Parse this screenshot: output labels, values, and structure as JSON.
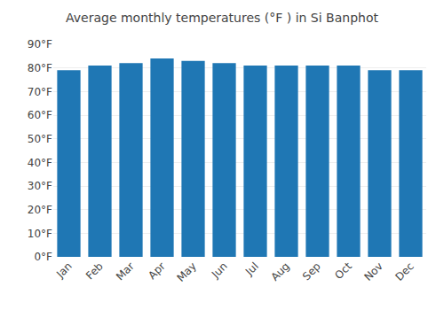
{
  "chart_data": {
    "type": "bar",
    "title": "Average monthly temperatures (°F ) in Si Banphot",
    "categories": [
      "Jan",
      "Feb",
      "Mar",
      "Apr",
      "May",
      "Jun",
      "Jul",
      "Aug",
      "Sep",
      "Oct",
      "Nov",
      "Dec"
    ],
    "values": [
      79,
      81,
      82,
      84,
      83,
      82,
      81,
      81,
      81,
      81,
      79,
      79
    ],
    "ylim": [
      0,
      90
    ],
    "yticks": [
      {
        "value": 0,
        "label": "0°F"
      },
      {
        "value": 10,
        "label": "10°F"
      },
      {
        "value": 20,
        "label": "20°F"
      },
      {
        "value": 30,
        "label": "30°F"
      },
      {
        "value": 40,
        "label": "40°F"
      },
      {
        "value": 50,
        "label": "50°F"
      },
      {
        "value": 60,
        "label": "60°F"
      },
      {
        "value": 70,
        "label": "70°F"
      },
      {
        "value": 80,
        "label": "80°F"
      },
      {
        "value": 90,
        "label": "90°F"
      }
    ],
    "grid": true
  }
}
